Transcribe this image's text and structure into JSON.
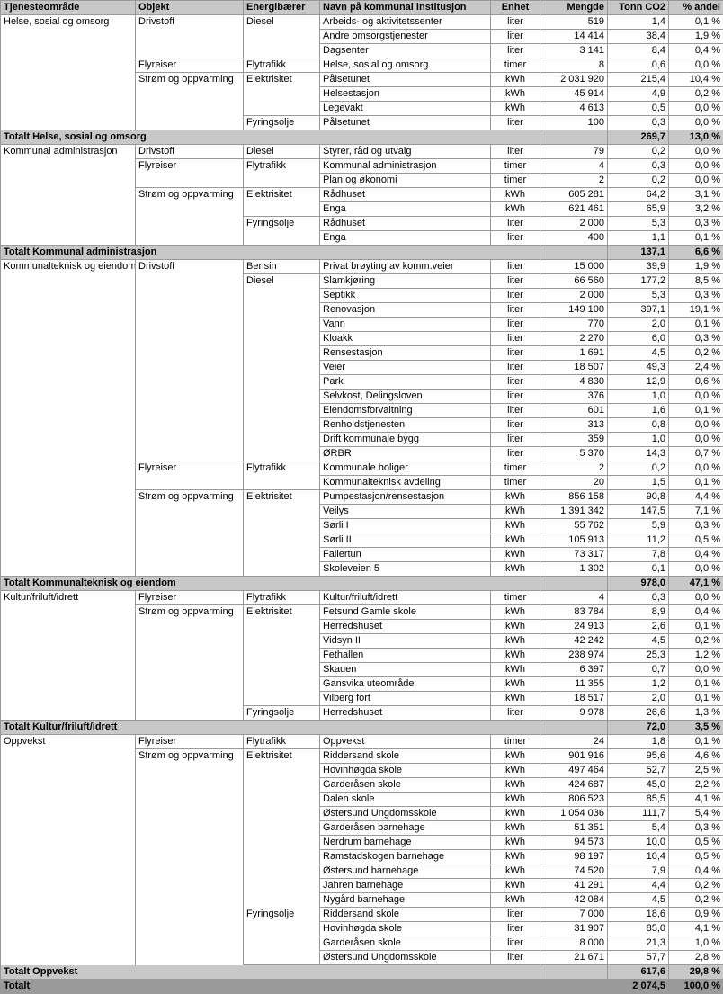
{
  "headers": [
    "Tjenesteområde",
    "Objekt",
    "Energibærer",
    "Navn på kommunal institusjon",
    "Enhet",
    "Mengde",
    "Tonn CO2",
    "% andel"
  ],
  "colors": {
    "header": "#c8c8c8",
    "subtotal": "#c8c8c8",
    "grand": "#9a9a9a"
  },
  "rows": [
    {
      "t": "d",
      "c0": "Helse, sosial og omsorg",
      "c0s": 8,
      "c1": "Drivstoff",
      "c1s": 3,
      "c2": "Diesel",
      "c2s": 3,
      "c3": "Arbeids- og aktivitetssenter",
      "c4": "liter",
      "c5": "519",
      "c6": "1,4",
      "c7": "0,1 %"
    },
    {
      "t": "d",
      "c3": "Andre omsorgstjenester",
      "c4": "liter",
      "c5": "14 414",
      "c6": "38,4",
      "c7": "1,9 %"
    },
    {
      "t": "d",
      "c3": "Dagsenter",
      "c4": "liter",
      "c5": "3 141",
      "c6": "8,4",
      "c7": "0,4 %"
    },
    {
      "t": "d",
      "c1": "Flyreiser",
      "c1s": 1,
      "c2": "Flytrafikk",
      "c2s": 1,
      "c3": "Helse, sosial og omsorg",
      "c4": "timer",
      "c5": "8",
      "c6": "0,6",
      "c7": "0,0 %"
    },
    {
      "t": "d",
      "c1": "Strøm og oppvarming",
      "c1s": 4,
      "c2": "Elektrisitet",
      "c2s": 3,
      "c3": "Pålsetunet",
      "c4": "kWh",
      "c5": "2 031 920",
      "c6": "215,4",
      "c7": "10,4 %"
    },
    {
      "t": "d",
      "c3": "Helsestasjon",
      "c4": "kWh",
      "c5": "45 914",
      "c6": "4,9",
      "c7": "0,2 %"
    },
    {
      "t": "d",
      "c3": "Legevakt",
      "c4": "kWh",
      "c5": "4 613",
      "c6": "0,5",
      "c7": "0,0 %"
    },
    {
      "t": "d",
      "c2": "Fyringsolje",
      "c2s": 1,
      "c3": "Pålsetunet",
      "c4": "liter",
      "c5": "100",
      "c6": "0,3",
      "c7": "0,0 %"
    },
    {
      "t": "s",
      "label": "Totalt Helse, sosial og omsorg",
      "c6": "269,7",
      "c7": "13,0 %"
    },
    {
      "t": "d",
      "c0": "Kommunal administrasjon",
      "c0s": 7,
      "c1": "Drivstoff",
      "c1s": 1,
      "c2": "Diesel",
      "c2s": 1,
      "c3": "Styrer, råd og utvalg",
      "c4": "liter",
      "c5": "79",
      "c6": "0,2",
      "c7": "0,0 %"
    },
    {
      "t": "d",
      "c1": "Flyreiser",
      "c1s": 2,
      "c2": "Flytrafikk",
      "c2s": 2,
      "c3": "Kommunal administrasjon",
      "c4": "timer",
      "c5": "4",
      "c6": "0,3",
      "c7": "0,0 %"
    },
    {
      "t": "d",
      "c3": "Plan og økonomi",
      "c4": "timer",
      "c5": "2",
      "c6": "0,2",
      "c7": "0,0 %"
    },
    {
      "t": "d",
      "c1": "Strøm og oppvarming",
      "c1s": 4,
      "c2": "Elektrisitet",
      "c2s": 2,
      "c3": "Rådhuset",
      "c4": "kWh",
      "c5": "605 281",
      "c6": "64,2",
      "c7": "3,1 %"
    },
    {
      "t": "d",
      "c3": "Enga",
      "c4": "kWh",
      "c5": "621 461",
      "c6": "65,9",
      "c7": "3,2 %"
    },
    {
      "t": "d",
      "c2": "Fyringsolje",
      "c2s": 2,
      "c3": "Rådhuset",
      "c4": "liter",
      "c5": "2 000",
      "c6": "5,3",
      "c7": "0,3 %"
    },
    {
      "t": "d",
      "c3": "Enga",
      "c4": "liter",
      "c5": "400",
      "c6": "1,1",
      "c7": "0,1 %"
    },
    {
      "t": "s",
      "label": "Totalt Kommunal administrasjon",
      "c6": "137,1",
      "c7": "6,6 %"
    },
    {
      "t": "d",
      "c0": "Kommunalteknisk og eiendom",
      "c0s": 22,
      "c1": "Drivstoff",
      "c1s": 14,
      "c2": "Bensin",
      "c2s": 1,
      "c3": "Privat brøyting av komm.veier",
      "c4": "liter",
      "c5": "15 000",
      "c6": "39,9",
      "c7": "1,9 %"
    },
    {
      "t": "d",
      "c2": "Diesel",
      "c2s": 13,
      "c3": "Slamkjøring",
      "c4": "liter",
      "c5": "66 560",
      "c6": "177,2",
      "c7": "8,5 %"
    },
    {
      "t": "d",
      "c3": "Septikk",
      "c4": "liter",
      "c5": "2 000",
      "c6": "5,3",
      "c7": "0,3 %"
    },
    {
      "t": "d",
      "c3": "Renovasjon",
      "c4": "liter",
      "c5": "149 100",
      "c6": "397,1",
      "c7": "19,1 %"
    },
    {
      "t": "d",
      "c3": "Vann",
      "c4": "liter",
      "c5": "770",
      "c6": "2,0",
      "c7": "0,1 %"
    },
    {
      "t": "d",
      "c3": "Kloakk",
      "c4": "liter",
      "c5": "2 270",
      "c6": "6,0",
      "c7": "0,3 %"
    },
    {
      "t": "d",
      "c3": "Rensestasjon",
      "c4": "liter",
      "c5": "1 691",
      "c6": "4,5",
      "c7": "0,2 %"
    },
    {
      "t": "d",
      "c3": "Veier",
      "c4": "liter",
      "c5": "18 507",
      "c6": "49,3",
      "c7": "2,4 %"
    },
    {
      "t": "d",
      "c3": "Park",
      "c4": "liter",
      "c5": "4 830",
      "c6": "12,9",
      "c7": "0,6 %"
    },
    {
      "t": "d",
      "c3": "Selvkost, Delingsloven",
      "c4": "liter",
      "c5": "376",
      "c6": "1,0",
      "c7": "0,0 %"
    },
    {
      "t": "d",
      "c3": "Eiendomsforvaltning",
      "c4": "liter",
      "c5": "601",
      "c6": "1,6",
      "c7": "0,1 %"
    },
    {
      "t": "d",
      "c3": "Renholdstjenesten",
      "c4": "liter",
      "c5": "313",
      "c6": "0,8",
      "c7": "0,0 %"
    },
    {
      "t": "d",
      "c3": "Drift kommunale bygg",
      "c4": "liter",
      "c5": "359",
      "c6": "1,0",
      "c7": "0,0 %"
    },
    {
      "t": "d",
      "c3": "ØRBR",
      "c4": "liter",
      "c5": "5 370",
      "c6": "14,3",
      "c7": "0,7 %"
    },
    {
      "t": "d",
      "c1": "Flyreiser",
      "c1s": 2,
      "c2": "Flytrafikk",
      "c2s": 2,
      "c3": "Kommunale boliger",
      "c4": "timer",
      "c5": "2",
      "c6": "0,2",
      "c7": "0,0 %"
    },
    {
      "t": "d",
      "c3": "Kommunalteknisk avdeling",
      "c4": "timer",
      "c5": "20",
      "c6": "1,5",
      "c7": "0,1 %"
    },
    {
      "t": "d",
      "c1": "Strøm og oppvarming",
      "c1s": 6,
      "c2": "Elektrisitet",
      "c2s": 6,
      "c3": "Pumpestasjon/rensestasjon",
      "c4": "kWh",
      "c5": "856 158",
      "c6": "90,8",
      "c7": "4,4 %"
    },
    {
      "t": "d",
      "c3": "Veilys",
      "c4": "kWh",
      "c5": "1 391 342",
      "c6": "147,5",
      "c7": "7,1 %"
    },
    {
      "t": "d",
      "c3": "Sørli I",
      "c4": "kWh",
      "c5": "55 762",
      "c6": "5,9",
      "c7": "0,3 %"
    },
    {
      "t": "d",
      "c3": "Sørli II",
      "c4": "kWh",
      "c5": "105 913",
      "c6": "11,2",
      "c7": "0,5 %"
    },
    {
      "t": "d",
      "c3": "Fallertun",
      "c4": "kWh",
      "c5": "73 317",
      "c6": "7,8",
      "c7": "0,4 %"
    },
    {
      "t": "d",
      "c3": "Skoleveien 5",
      "c4": "kWh",
      "c5": "1 302",
      "c6": "0,1",
      "c7": "0,0 %"
    },
    {
      "t": "s",
      "label": "Totalt Kommunalteknisk og eiendom",
      "c6": "978,0",
      "c7": "47,1 %"
    },
    {
      "t": "d",
      "c0": "Kultur/friluft/idrett",
      "c0s": 9,
      "c1": "Flyreiser",
      "c1s": 1,
      "c2": "Flytrafikk",
      "c2s": 1,
      "c3": "Kultur/friluft/idrett",
      "c4": "timer",
      "c5": "4",
      "c6": "0,3",
      "c7": "0,0 %"
    },
    {
      "t": "d",
      "c1": "Strøm og oppvarming",
      "c1s": 8,
      "c2": "Elektrisitet",
      "c2s": 7,
      "c3": "Fetsund Gamle skole",
      "c4": "kWh",
      "c5": "83 784",
      "c6": "8,9",
      "c7": "0,4 %"
    },
    {
      "t": "d",
      "c3": "Herredshuset",
      "c4": "kWh",
      "c5": "24 913",
      "c6": "2,6",
      "c7": "0,1 %"
    },
    {
      "t": "d",
      "c3": "Vidsyn II",
      "c4": "kWh",
      "c5": "42 242",
      "c6": "4,5",
      "c7": "0,2 %"
    },
    {
      "t": "d",
      "c3": "Fethallen",
      "c4": "kWh",
      "c5": "238 974",
      "c6": "25,3",
      "c7": "1,2 %"
    },
    {
      "t": "d",
      "c3": "Skauen",
      "c4": "kWh",
      "c5": "6 397",
      "c6": "0,7",
      "c7": "0,0 %"
    },
    {
      "t": "d",
      "c3": "Gansvika uteområde",
      "c4": "kWh",
      "c5": "11 355",
      "c6": "1,2",
      "c7": "0,1 %"
    },
    {
      "t": "d",
      "c3": "Vilberg fort",
      "c4": "kWh",
      "c5": "18 517",
      "c6": "2,0",
      "c7": "0,1 %"
    },
    {
      "t": "d",
      "c2": "Fyringsolje",
      "c2s": 1,
      "c3": "Herredshuset",
      "c4": "liter",
      "c5": "9 978",
      "c6": "26,6",
      "c7": "1,3 %"
    },
    {
      "t": "s",
      "label": "Totalt Kultur/friluft/idrett",
      "c6": "72,0",
      "c7": "3,5 %"
    },
    {
      "t": "d",
      "c0": "Oppvekst",
      "c0s": 17,
      "c1": "Flyreiser",
      "c1s": 1,
      "c2": "Flytrafikk",
      "c2s": 1,
      "c3": "Oppvekst",
      "c4": "timer",
      "c5": "24",
      "c6": "1,8",
      "c7": "0,1 %"
    },
    {
      "t": "d",
      "c1": "Strøm og oppvarming",
      "c1s": 16,
      "c2": "Elektrisitet",
      "c2s": 12,
      "c3": "Riddersand skole",
      "c4": "kWh",
      "c5": "901 916",
      "c6": "95,6",
      "c7": "4,6 %"
    },
    {
      "t": "d",
      "c3": "Hovinhøgda skole",
      "c4": "kWh",
      "c5": "497 464",
      "c6": "52,7",
      "c7": "2,5 %"
    },
    {
      "t": "d",
      "c3": "Garderåsen skole",
      "c4": "kWh",
      "c5": "424 687",
      "c6": "45,0",
      "c7": "2,2 %"
    },
    {
      "t": "d",
      "c3": "Dalen skole",
      "c4": "kWh",
      "c5": "806 523",
      "c6": "85,5",
      "c7": "4,1 %"
    },
    {
      "t": "d",
      "c3": "Østersund Ungdomsskole",
      "c4": "kWh",
      "c5": "1 054 036",
      "c6": "111,7",
      "c7": "5,4 %"
    },
    {
      "t": "d",
      "c3": "Garderåsen barnehage",
      "c4": "kWh",
      "c5": "51 351",
      "c6": "5,4",
      "c7": "0,3 %"
    },
    {
      "t": "d",
      "c3": "Nerdrum barnehage",
      "c4": "kWh",
      "c5": "94 573",
      "c6": "10,0",
      "c7": "0,5 %"
    },
    {
      "t": "d",
      "c3": "Ramstadskogen barnehage",
      "c4": "kWh",
      "c5": "98 197",
      "c6": "10,4",
      "c7": "0,5 %"
    },
    {
      "t": "d",
      "c3": "Østersund barnehage",
      "c4": "kWh",
      "c5": "74 520",
      "c6": "7,9",
      "c7": "0,4 %"
    },
    {
      "t": "d",
      "c3": "Jahren barnehage",
      "c4": "kWh",
      "c5": "41 291",
      "c6": "4,4",
      "c7": "0,2 %"
    },
    {
      "t": "d",
      "c3": "Nygård barnehage",
      "c4": "kWh",
      "c5": "42 084",
      "c6": "4,5",
      "c7": "0,2 %"
    },
    {
      "t": "d",
      "c2": "Fyringsolje",
      "c2s": 4,
      "c3": "Riddersand skole",
      "c4": "liter",
      "c5": "7 000",
      "c6": "18,6",
      "c7": "0,9 %"
    },
    {
      "t": "d",
      "c3": "Hovinhøgda skole",
      "c4": "liter",
      "c5": "31 907",
      "c6": "85,0",
      "c7": "4,1 %"
    },
    {
      "t": "d",
      "c3": "Garderåsen skole",
      "c4": "liter",
      "c5": "8 000",
      "c6": "21,3",
      "c7": "1,0 %"
    },
    {
      "t": "d",
      "c3": "Østersund Ungdomsskole",
      "c4": "liter",
      "c5": "21 671",
      "c6": "57,7",
      "c7": "2,8 %"
    },
    {
      "t": "s",
      "label": "Totalt Oppvekst",
      "c6": "617,6",
      "c7": "29,8 %"
    },
    {
      "t": "g",
      "label": "Totalt",
      "c6": "2 074,5",
      "c7": "100,0 %"
    }
  ]
}
